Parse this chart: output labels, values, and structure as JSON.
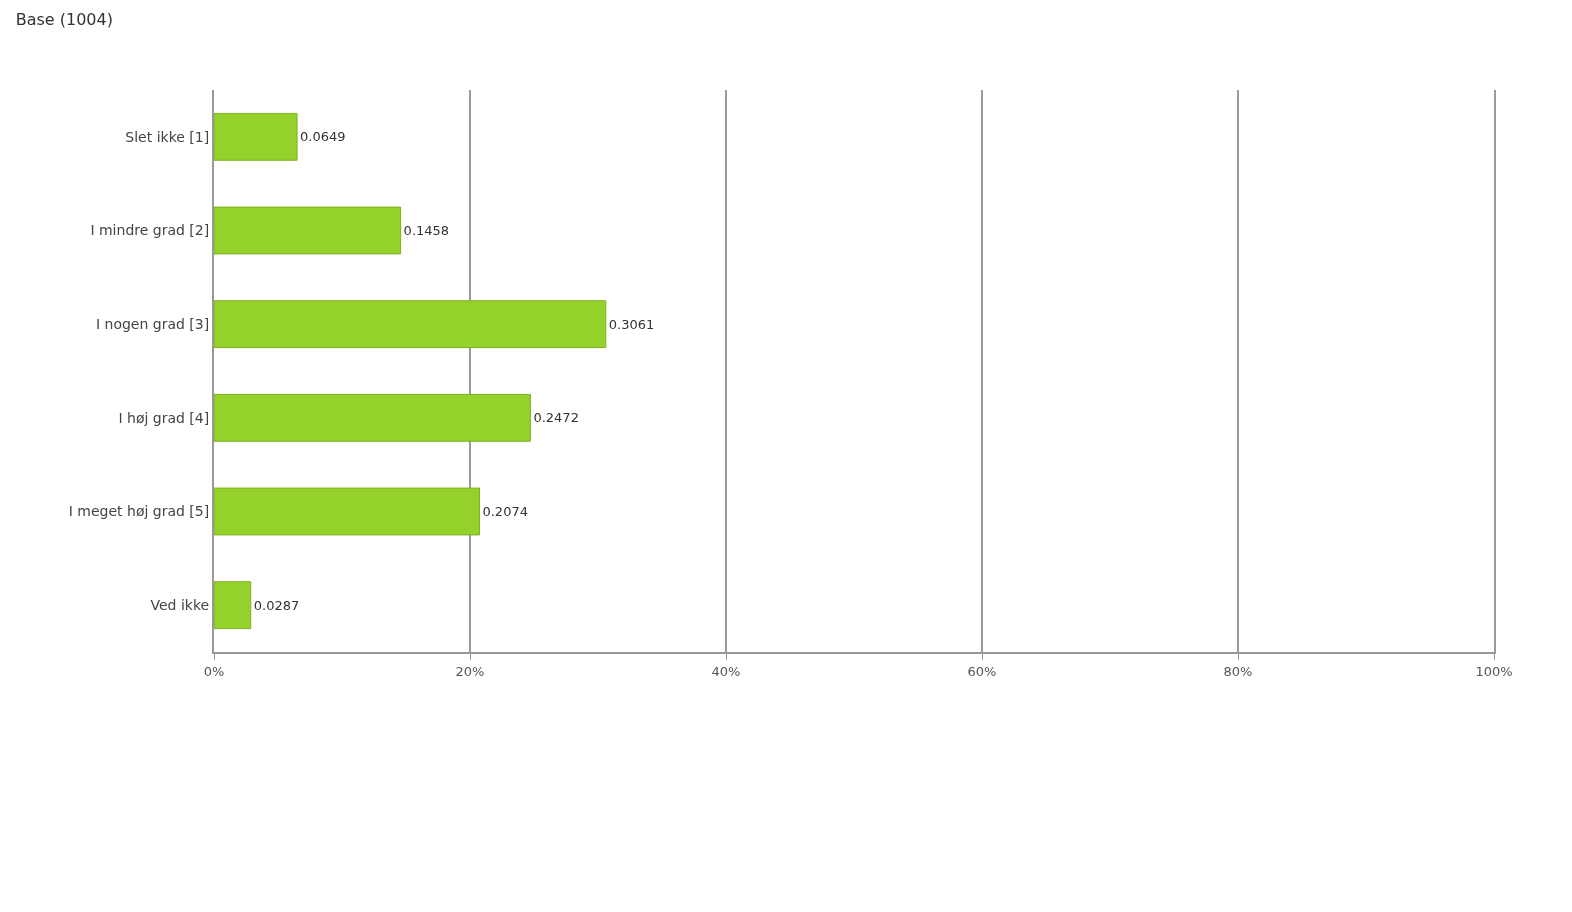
{
  "chart_data": {
    "type": "bar",
    "orientation": "horizontal",
    "title": "Base (1004)",
    "categories": [
      "Slet ikke [1]",
      "I mindre grad [2]",
      "I nogen grad [3]",
      "I høj grad [4]",
      "I meget høj grad [5]",
      "Ved ikke"
    ],
    "values": [
      0.0649,
      0.1458,
      0.3061,
      0.2472,
      0.2074,
      0.0287
    ],
    "value_labels": [
      "0.0649",
      "0.1458",
      "0.3061",
      "0.2472",
      "0.2074",
      "0.0287"
    ],
    "color": "#94d12a",
    "xlim": [
      0,
      1
    ],
    "xticks": [
      {
        "value": 0,
        "label": "0%"
      },
      {
        "value": 0.2,
        "label": "20%"
      },
      {
        "value": 0.4,
        "label": "40%"
      },
      {
        "value": 0.6,
        "label": "60%"
      },
      {
        "value": 0.8,
        "label": "80%"
      },
      {
        "value": 1,
        "label": "100%"
      }
    ],
    "grid": "x"
  }
}
